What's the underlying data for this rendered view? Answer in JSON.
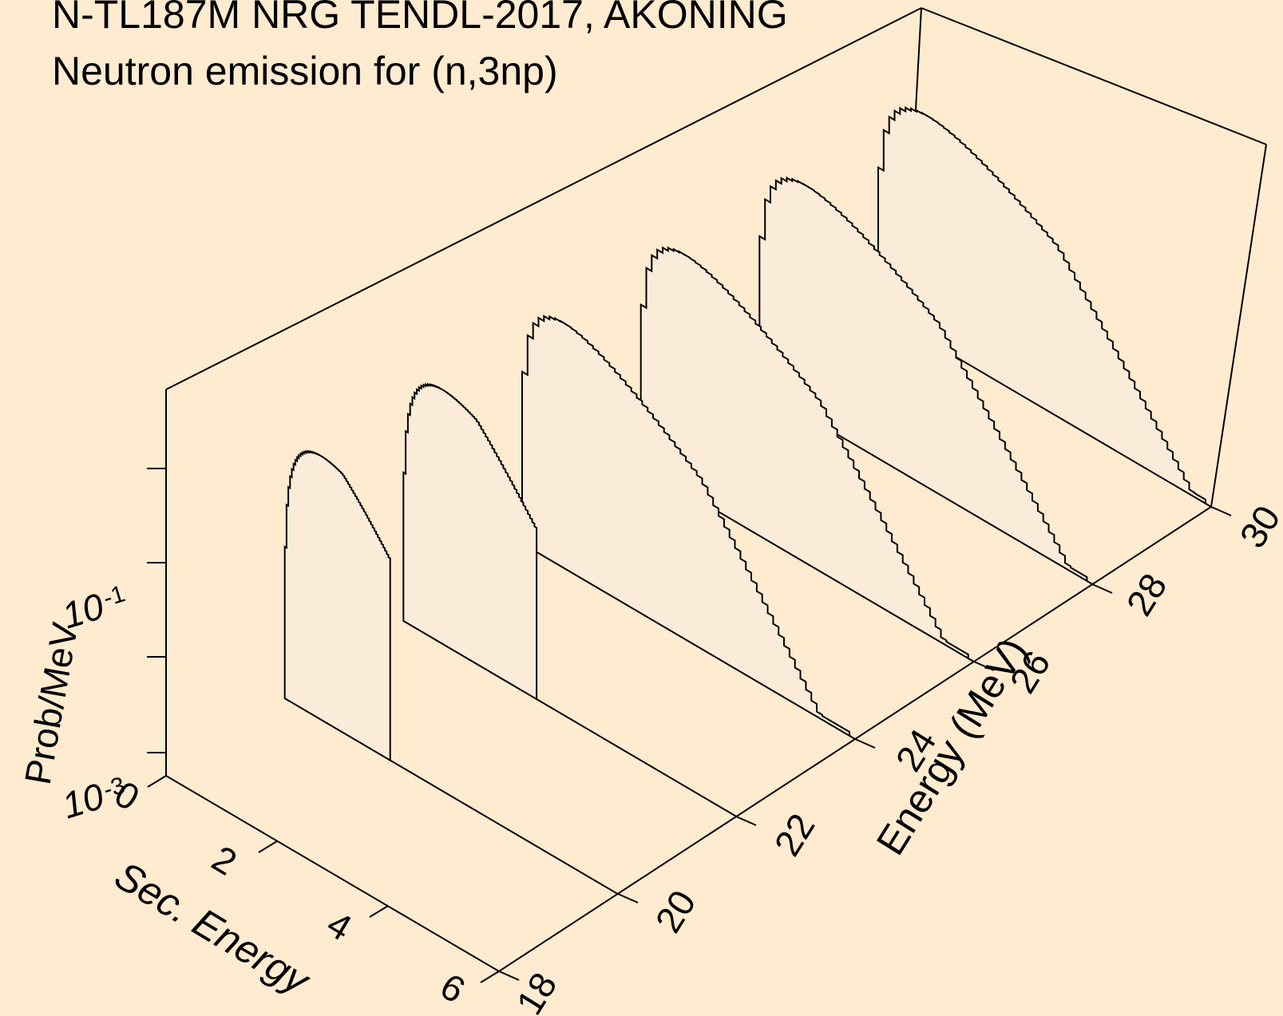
{
  "chart_data": {
    "type": "area",
    "title": "N-TL187M NRG TENDL-2017, AKONING",
    "subtitle": "Neutron emission for (n,3np)",
    "xlabel": "Sec. Energy",
    "ylabel": "Energy (MeV)",
    "zlabel": "Prob/MeV",
    "x_ticks": [
      "0",
      "2",
      "4",
      "6"
    ],
    "y_ticks": [
      "18",
      "20",
      "22",
      "24",
      "26",
      "28",
      "30"
    ],
    "z_ticks": [
      {
        "base": "10",
        "exp": "-3"
      },
      {
        "base": "10",
        "exp": "-1"
      }
    ],
    "xlim": [
      0,
      6
    ],
    "ylim": [
      18,
      30
    ],
    "zscale": "log",
    "series": [
      {
        "energy": 20,
        "sec_energy_max": 1.9,
        "peak_sec_energy": 0.65,
        "peak_prob": 0.63
      },
      {
        "energy": 22,
        "sec_energy_max": 2.4,
        "peak_sec_energy": 0.7,
        "peak_prob": 0.5
      },
      {
        "energy": 24,
        "sec_energy_max": 5.9,
        "peak_sec_energy": 0.75,
        "peak_prob": 0.4
      },
      {
        "energy": 26,
        "sec_energy_max": 5.9,
        "peak_sec_energy": 0.8,
        "peak_prob": 0.33
      },
      {
        "energy": 28,
        "sec_energy_max": 5.9,
        "peak_sec_energy": 0.85,
        "peak_prob": 0.28
      },
      {
        "energy": 30,
        "sec_energy_max": 5.9,
        "peak_sec_energy": 0.9,
        "peak_prob": 0.24
      }
    ]
  }
}
